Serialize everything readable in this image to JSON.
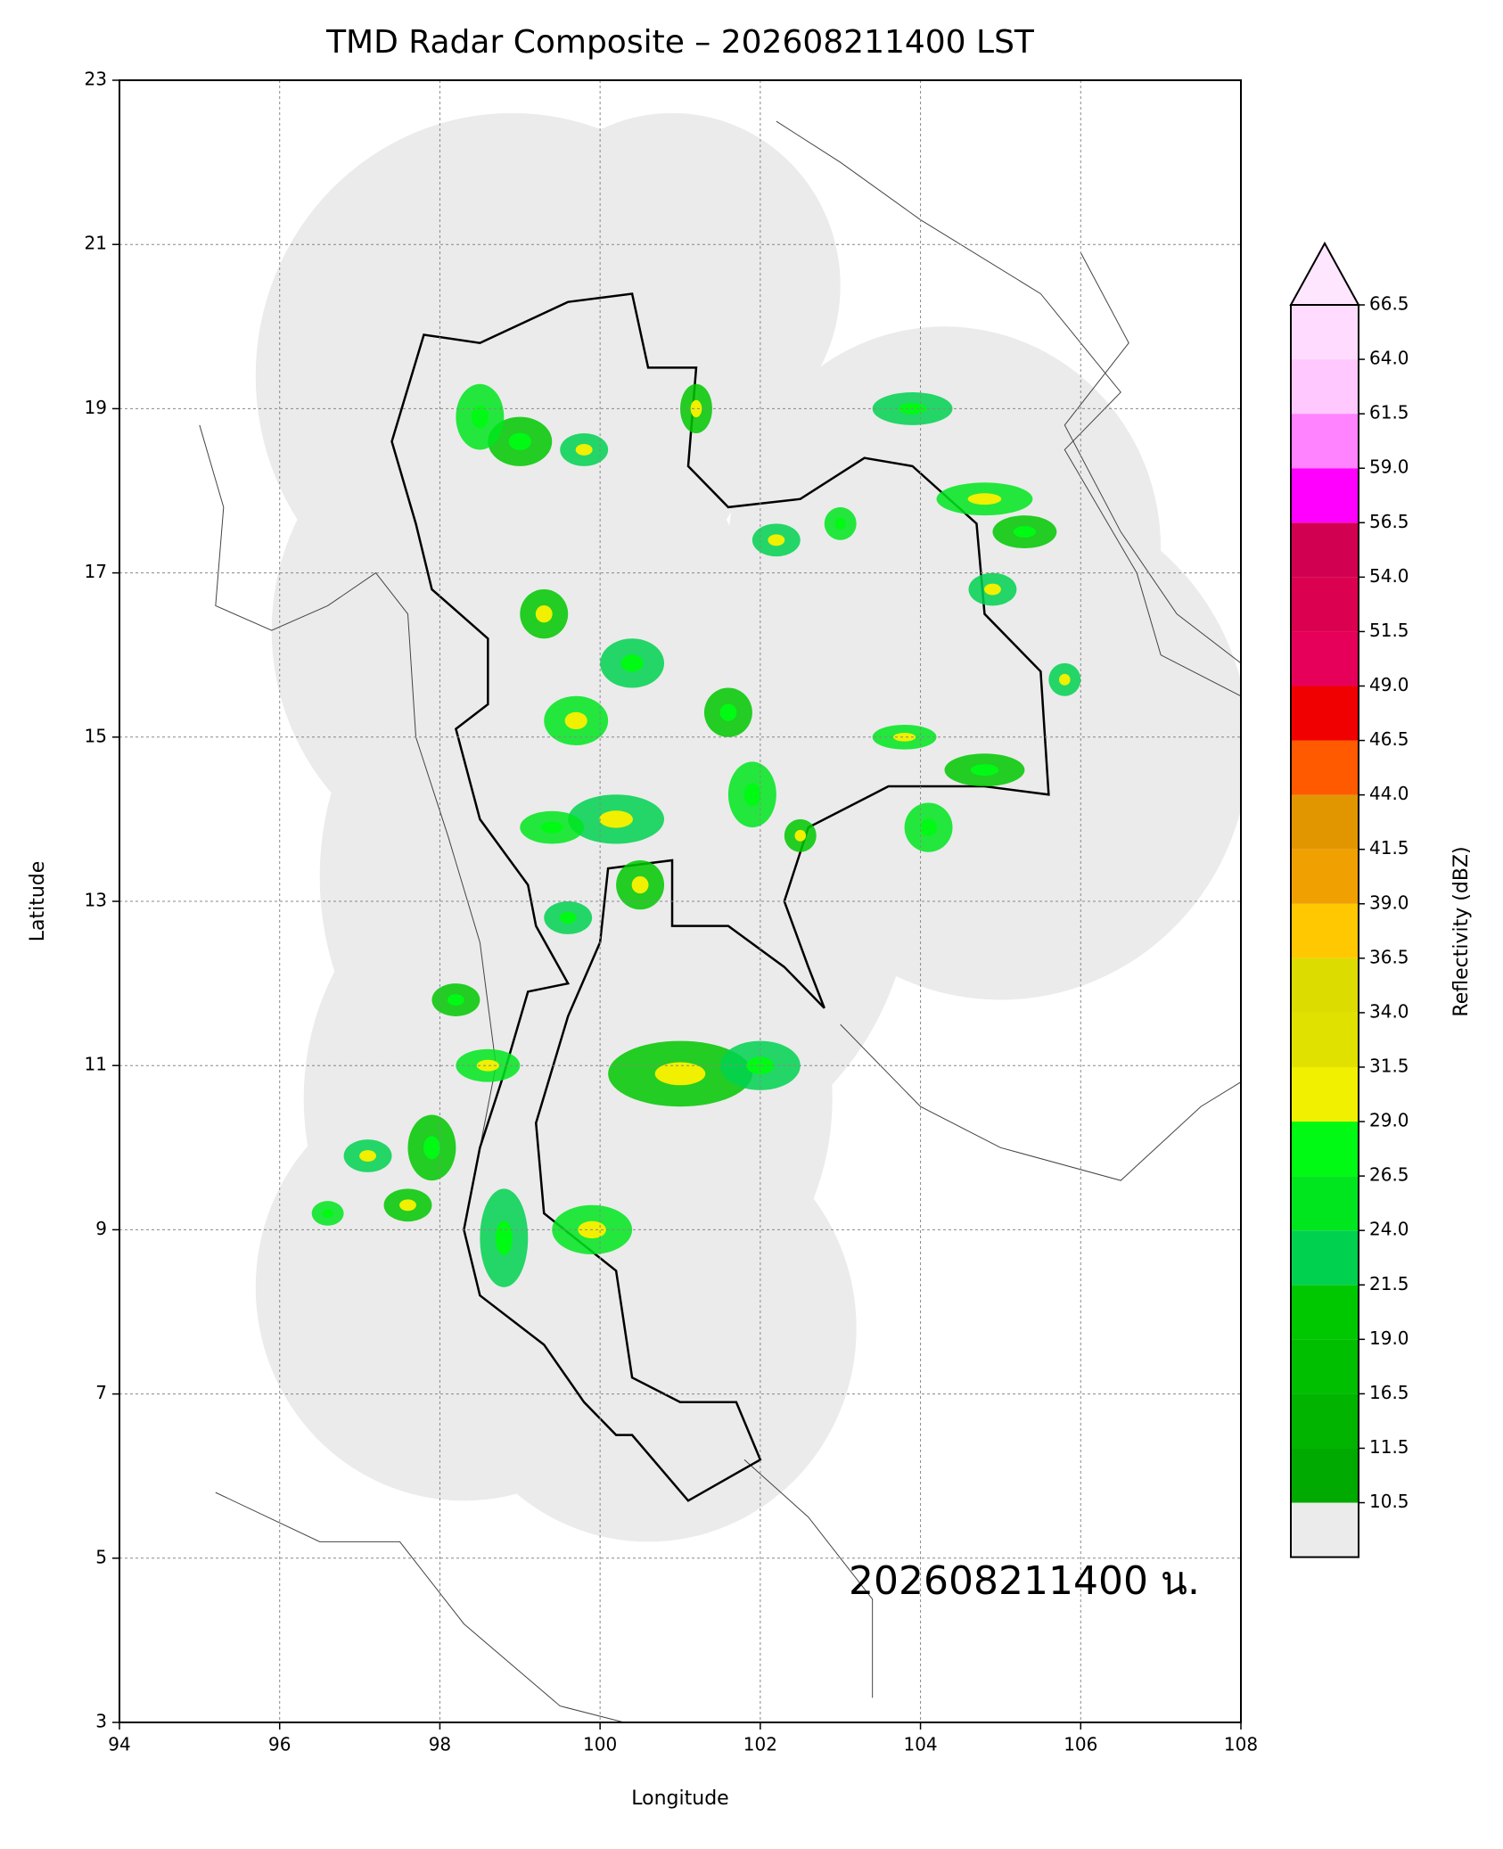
{
  "chart_data": {
    "type": "radar-map",
    "title": "TMD Radar Composite – 202608211400 LST",
    "xlabel": "Longitude",
    "ylabel": "Latitude",
    "annotation": "202608211400 น.",
    "xlim": [
      94,
      108
    ],
    "ylim": [
      3,
      23
    ],
    "xticks": [
      94,
      96,
      98,
      100,
      102,
      104,
      106,
      108
    ],
    "yticks": [
      3,
      5,
      7,
      9,
      11,
      13,
      15,
      17,
      19,
      21,
      23
    ],
    "grid": true,
    "colorbar": {
      "label": "Reflectivity (dBZ)",
      "levels": [
        10.5,
        11.5,
        16.5,
        {
          "value": 19,
          "label": "19.0"
        },
        21.5,
        {
          "value": 24,
          "label": "24.0"
        },
        26.5,
        {
          "value": 29,
          "label": "29.0"
        },
        31.5,
        {
          "value": 34,
          "label": "34.0"
        },
        36.5,
        {
          "value": 39,
          "label": "39.0"
        },
        41.5,
        {
          "value": 44,
          "label": "44.0"
        },
        46.5,
        {
          "value": 49,
          "label": "49.0"
        },
        51.5,
        {
          "value": 54,
          "label": "54.0"
        },
        56.5,
        {
          "value": 59,
          "label": "59.0"
        },
        61.5,
        {
          "value": 64,
          "label": "64.0"
        },
        66.5
      ],
      "colors": [
        "#00aa00",
        "#00b400",
        "#00be00",
        "#00c800",
        "#00d250",
        "#00e61e",
        "#00fa14",
        "#f0f000",
        "#e1e100",
        "#dcdc00",
        "#ffc800",
        "#f0a000",
        "#e19600",
        "#ff5a00",
        "#f00000",
        "#e6005a",
        "#dc0050",
        "#d20050",
        "#ff00ff",
        "#ff82ff",
        "#ffc8ff",
        "#ffdcff"
      ],
      "under_color": "#ebebeb",
      "over_color": "#ffe6ff"
    }
  }
}
